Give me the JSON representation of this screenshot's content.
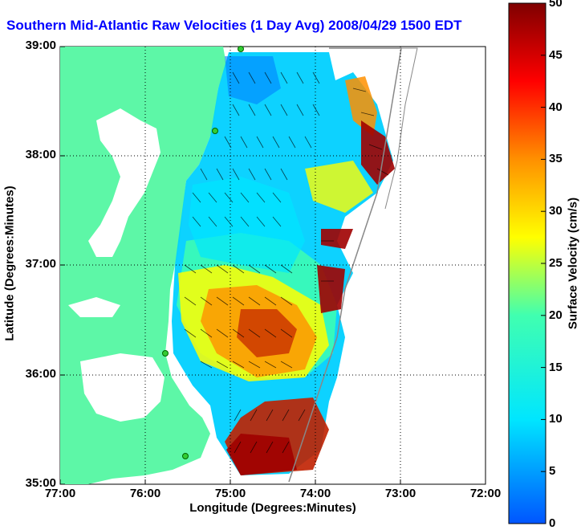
{
  "title": "Southern Mid-Atlantic Raw Velocities (1 Day Avg) 2008/04/29 1500 EDT",
  "xlabel": "Longitude (Degrees:Minutes)",
  "ylabel": "Latitude (Degrees:Minutes)",
  "xticks": [
    "77:00",
    "76:00",
    "75:00",
    "74:00",
    "73:00",
    "72:00"
  ],
  "yticks": [
    "39:00",
    "38:00",
    "37:00",
    "36:00",
    "35:00"
  ],
  "colorbar": {
    "label": "Surface Velocity (cm/s)",
    "ticks": [
      "50",
      "45",
      "40",
      "35",
      "30",
      "25",
      "20",
      "15",
      "10",
      "5",
      "0"
    ],
    "min": 0,
    "max": 50
  },
  "colors": {
    "land": "#5df7a7",
    "water": "#ffffff",
    "title": "#0000ff",
    "grid": "#000000"
  }
}
